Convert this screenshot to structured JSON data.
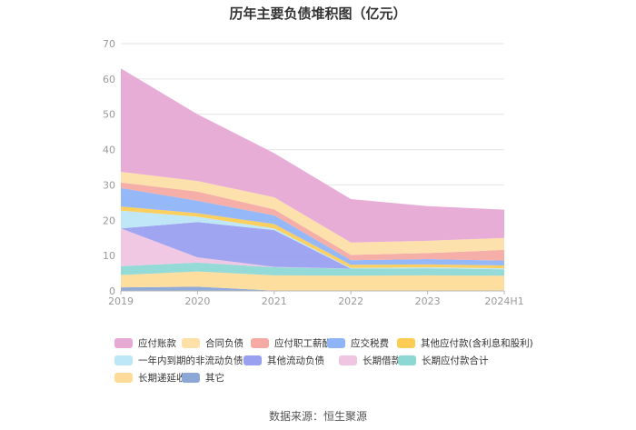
{
  "title": "历年主要负债堆积图（亿元）",
  "source": "数据来源：恒生聚源",
  "chart_data": {
    "type": "area",
    "stacked": true,
    "categories": [
      "2019",
      "2020",
      "2021",
      "2022",
      "2023",
      "2024H1"
    ],
    "yticks": [
      0,
      10,
      20,
      30,
      40,
      50,
      60,
      70
    ],
    "ylim": [
      0,
      70
    ],
    "grid": true,
    "legend_position": "bottom",
    "series": [
      {
        "name": "其它",
        "color": "#8aa7d6",
        "values": [
          1.0,
          1.2,
          0.1,
          0.1,
          0.1,
          0.1
        ]
      },
      {
        "name": "长期递延收益",
        "color": "#fddc9a",
        "values": [
          3.5,
          4.3,
          4.3,
          4.2,
          4.3,
          4.2
        ]
      },
      {
        "name": "长期应付款合计",
        "color": "#8ed8d4",
        "values": [
          2.5,
          2.5,
          2.3,
          2.0,
          2.0,
          1.8
        ]
      },
      {
        "name": "长期借款",
        "color": "#efc5e2",
        "values": [
          10.7,
          1.5,
          0.1,
          0,
          0,
          0
        ]
      },
      {
        "name": "其他流动负债",
        "color": "#9aa0f0",
        "values": [
          0,
          10.0,
          10.4,
          0,
          0,
          0
        ]
      },
      {
        "name": "一年内到期的非流动负债",
        "color": "#bde6f7",
        "values": [
          5.0,
          1.5,
          0.5,
          0.2,
          0.3,
          0.3
        ]
      },
      {
        "name": "其他应付款(含利息和股利)",
        "color": "#fccc55",
        "values": [
          1.2,
          1.0,
          1.2,
          0.9,
          0.8,
          0.8
        ]
      },
      {
        "name": "应交税费",
        "color": "#8fb4f8",
        "values": [
          5.2,
          3.5,
          2.5,
          1.3,
          1.5,
          1.4
        ]
      },
      {
        "name": "应付职工薪酬",
        "color": "#f5aaa3",
        "values": [
          1.6,
          2.6,
          1.7,
          1.5,
          1.7,
          3.0
        ]
      },
      {
        "name": "合同负债",
        "color": "#fddfa8",
        "values": [
          3.0,
          3.0,
          3.4,
          3.5,
          3.5,
          3.4
        ]
      },
      {
        "name": "应付账款",
        "color": "#e6a9d4",
        "values": [
          29.3,
          18.9,
          12.5,
          12.3,
          9.8,
          8.0
        ]
      }
    ]
  },
  "legend_order": [
    "应付账款",
    "合同负债",
    "应付职工薪酬",
    "应交税费",
    "其他应付款(含利息和股利)",
    "一年内到期的非流动负债",
    "其他流动负债",
    "长期借款",
    "长期应付款合计",
    "长期递延收益",
    "其它"
  ]
}
